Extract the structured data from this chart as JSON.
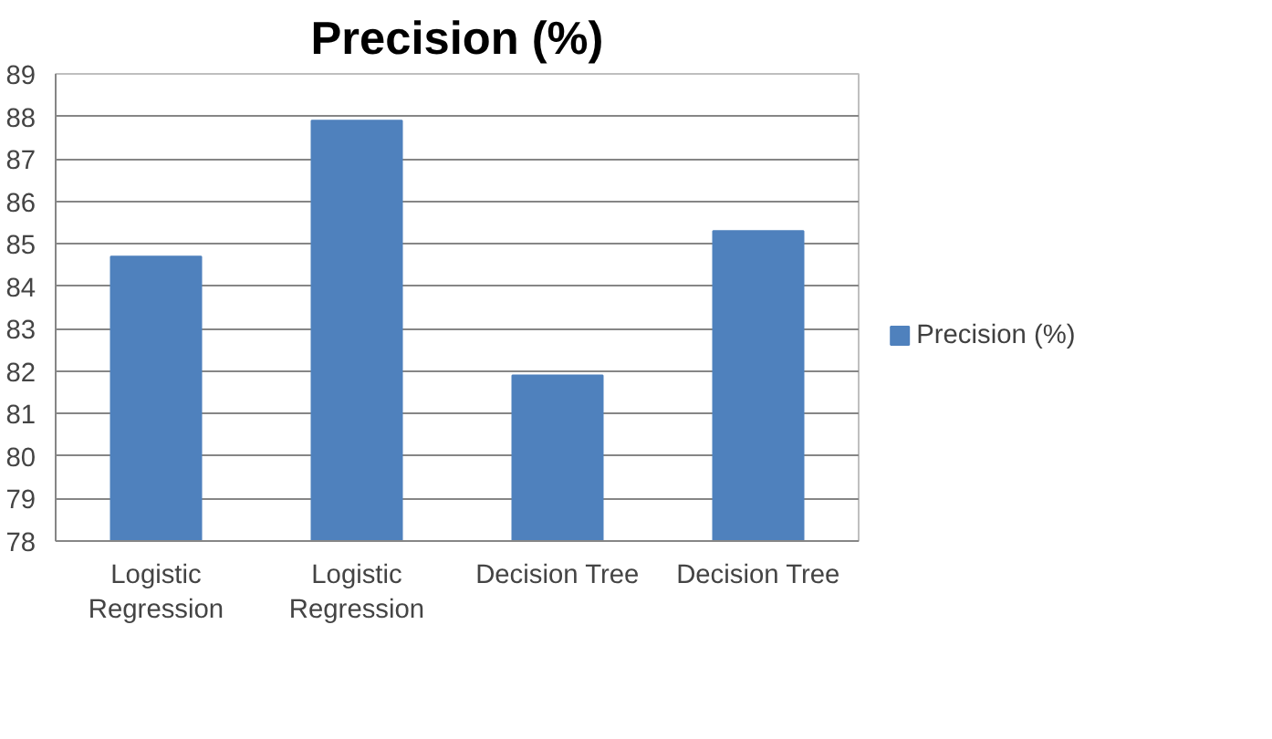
{
  "chart_data": {
    "type": "bar",
    "title": "Precision (%)",
    "categories": [
      "Logistic\nRegression",
      "Logistic\nRegression",
      "Decision Tree",
      "Decision Tree"
    ],
    "series": [
      {
        "name": "Precision (%)",
        "color": "#4f81bd",
        "values": [
          84.7,
          87.9,
          81.9,
          85.3
        ]
      }
    ],
    "ylim": [
      78,
      89
    ],
    "yticks": [
      78,
      79,
      80,
      81,
      82,
      83,
      84,
      85,
      86,
      87,
      88,
      89
    ],
    "grid": "y",
    "legend": "right"
  }
}
